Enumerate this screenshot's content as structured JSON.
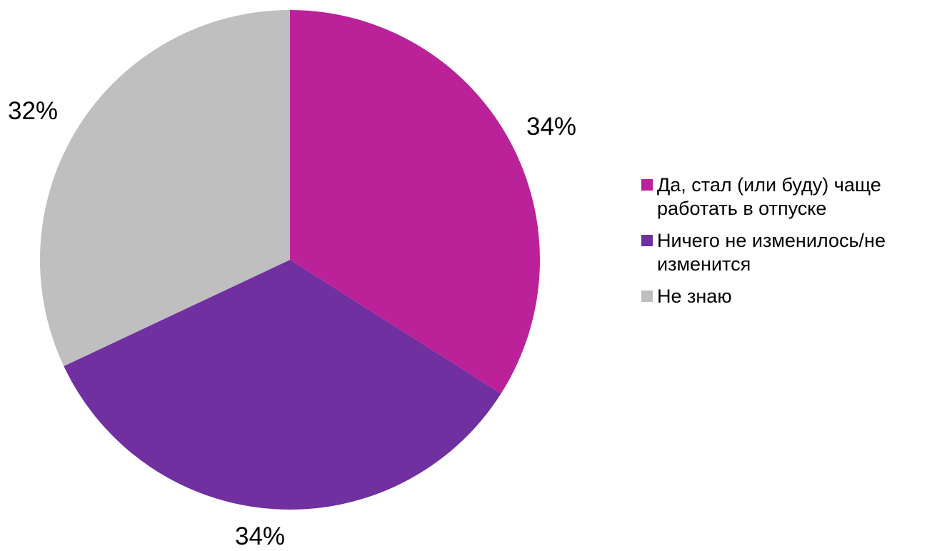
{
  "chart_data": {
    "type": "pie",
    "title": "",
    "slices": [
      {
        "label": "Да, стал (или буду) чаще работать в отпуске",
        "value": 34,
        "display": "34%",
        "color": "#BB2299"
      },
      {
        "label": "Ничего не изменилось/не изменится",
        "value": 34,
        "display": "34%",
        "color": "#7030A0"
      },
      {
        "label": "Не знаю",
        "value": 32,
        "display": "32%",
        "color": "#BFBFBF"
      }
    ],
    "legend_position": "right"
  }
}
